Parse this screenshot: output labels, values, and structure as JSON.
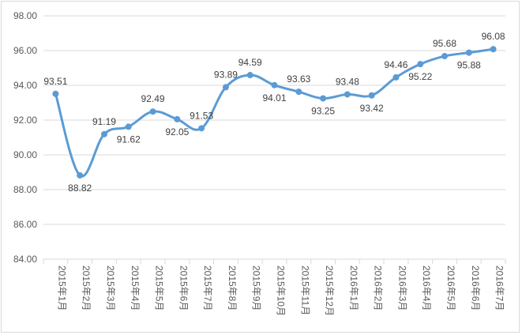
{
  "chart_data": {
    "type": "line",
    "title": "",
    "xlabel": "",
    "ylabel": "",
    "ylim": [
      84.0,
      98.0
    ],
    "yticks": [
      "84.00",
      "86.00",
      "88.00",
      "90.00",
      "92.00",
      "94.00",
      "96.00",
      "98.00"
    ],
    "grid": "horizontal",
    "legend": "none",
    "smooth": true,
    "categories": [
      "2015年1月",
      "2015年2月",
      "2015年3月",
      "2015年4月",
      "2015年5月",
      "2015年6月",
      "2015年7月",
      "2015年8月",
      "2015年9月",
      "2015年10月",
      "2015年11月",
      "2015年12月",
      "2016年1月",
      "2016年2月",
      "2016年3月",
      "2016年4月",
      "2016年5月",
      "2016年6月",
      "2016年7月"
    ],
    "values": [
      93.51,
      88.82,
      91.19,
      91.62,
      92.49,
      92.05,
      91.53,
      93.89,
      94.59,
      94.01,
      93.63,
      93.25,
      93.48,
      93.42,
      94.46,
      95.22,
      95.68,
      95.88,
      96.08
    ],
    "labels": [
      "93.51",
      "88.82",
      "91.19",
      "91.62",
      "92.49",
      "92.05",
      "91.53",
      "93.89",
      "94.59",
      "94.01",
      "93.63",
      "93.25",
      "93.48",
      "93.42",
      "94.46",
      "95.22",
      "95.68",
      "95.88",
      "96.08"
    ],
    "label_pos": [
      "above",
      "below",
      "above",
      "below",
      "above",
      "below",
      "above",
      "above",
      "above",
      "below",
      "above",
      "below",
      "above",
      "below",
      "above",
      "below",
      "above",
      "below",
      "above"
    ],
    "colors": {
      "line": "#5b9bd5",
      "grid": "#d9d9d9",
      "tick": "#595959"
    }
  }
}
